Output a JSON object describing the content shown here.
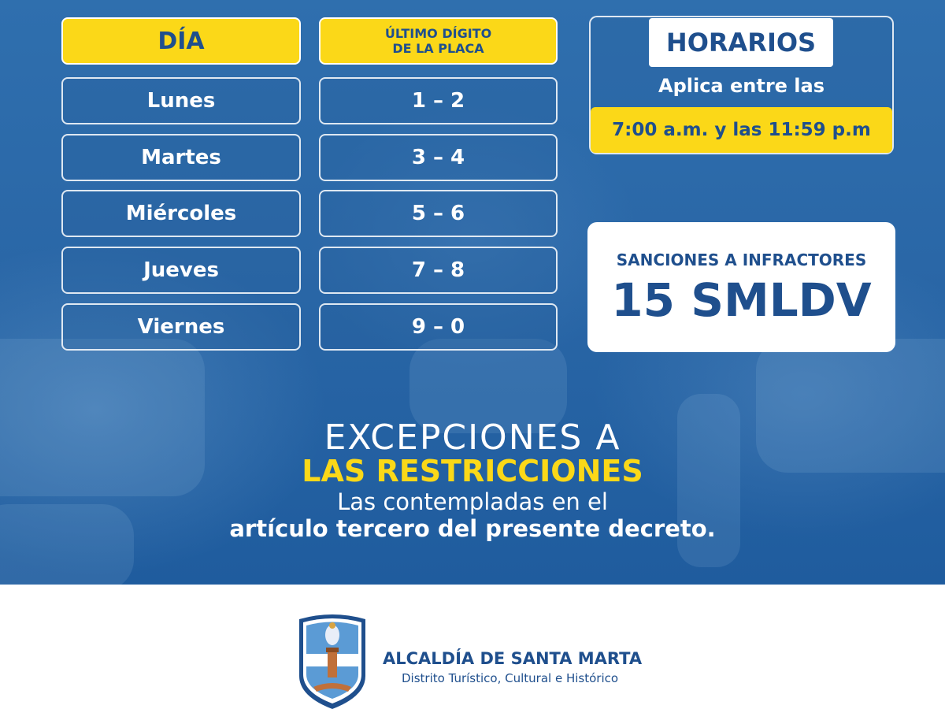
{
  "table": {
    "header_day": "DÍA",
    "header_plate_line1": "ÚLTIMO DÍGITO",
    "header_plate_line2": "DE LA PLACA",
    "rows": [
      {
        "day": "Lunes",
        "digits": "1 – 2"
      },
      {
        "day": "Martes",
        "digits": "3 – 4"
      },
      {
        "day": "Miércoles",
        "digits": "5 – 6"
      },
      {
        "day": "Jueves",
        "digits": "7 – 8"
      },
      {
        "day": "Viernes",
        "digits": "9 – 0"
      }
    ]
  },
  "horarios": {
    "title": "HORARIOS",
    "applies": "Aplica entre las",
    "hours": "7:00 a.m. y las 11:59 p.m"
  },
  "sanciones": {
    "label": "SANCIONES A INFRACTORES",
    "value": "15 SMLDV"
  },
  "excepciones": {
    "line1": "EXCEPCIONES A",
    "line2": "LAS RESTRICCIONES",
    "line3": "Las contempladas en el",
    "line4": "artículo tercero del presente decreto."
  },
  "footer": {
    "org_name": "ALCALDÍA DE SANTA MARTA",
    "org_subtitle": "Distrito Turístico, Cultural e Histórico",
    "logo_icon": "santa-marta-shield-icon"
  },
  "colors": {
    "primary_blue": "#1f4f8d",
    "accent_yellow": "#fbd818",
    "background_blue": "#2a67a7"
  }
}
